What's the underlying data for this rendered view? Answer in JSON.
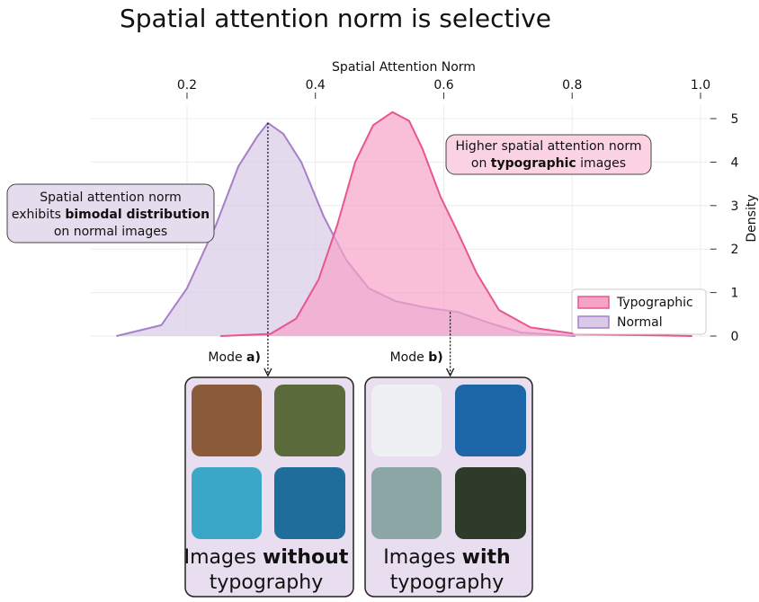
{
  "chart_data": {
    "type": "density",
    "title": "Spatial attention norm is selective",
    "x_label": "Spatial Attention Norm",
    "y_label": "Density",
    "xlim": [
      0.05,
      1.015
    ],
    "ylim": [
      0,
      5.3
    ],
    "xticks": [
      0.2,
      0.4,
      0.6,
      0.8,
      {
        "value": 1.0,
        "label": "1.0"
      }
    ],
    "yticks": [
      0,
      1,
      2,
      3,
      4,
      5
    ],
    "grid": true,
    "legend_position": "lower right",
    "series": [
      {
        "name": "Typographic",
        "color": "#e8558f",
        "fill": "#f7a3c7",
        "x": [
          0.252,
          0.33,
          0.37,
          0.405,
          0.434,
          0.462,
          0.49,
          0.52,
          0.546,
          0.567,
          0.595,
          0.623,
          0.651,
          0.686,
          0.735,
          0.805,
          0.987
        ],
        "values": [
          0,
          0.05,
          0.4,
          1.3,
          2.55,
          4.0,
          4.85,
          5.15,
          4.95,
          4.3,
          3.2,
          2.35,
          1.45,
          0.6,
          0.2,
          0.05,
          0
        ]
      },
      {
        "name": "Normal",
        "color": "#a77ec8",
        "fill": "#d9cbe7",
        "x": [
          0.09,
          0.16,
          0.2,
          0.245,
          0.28,
          0.31,
          0.326,
          0.35,
          0.378,
          0.413,
          0.448,
          0.483,
          0.525,
          0.574,
          0.623,
          0.665,
          0.72,
          0.805
        ],
        "values": [
          0,
          0.25,
          1.1,
          2.55,
          3.9,
          4.6,
          4.9,
          4.65,
          4.0,
          2.75,
          1.75,
          1.1,
          0.8,
          0.65,
          0.55,
          0.33,
          0.08,
          0
        ]
      }
    ],
    "annotations": [
      {
        "lines": [
          [
            "Spatial attention norm"
          ],
          [
            "exhibits ",
            "bimodal distribution"
          ],
          [
            "on normal images"
          ]
        ]
      },
      {
        "lines": [
          [
            "Higher spatial attention norm"
          ],
          [
            "on ",
            "typographic",
            " images"
          ]
        ]
      }
    ],
    "modes": [
      {
        "x": 0.326,
        "y": 4.9,
        "label": [
          "Mode ",
          "a)"
        ]
      },
      {
        "x": 0.61,
        "y": 0.55,
        "label": [
          "Mode ",
          "b)"
        ]
      }
    ]
  },
  "panels": [
    {
      "title": [
        [
          "Images ",
          "without"
        ],
        [
          "typography"
        ]
      ]
    },
    {
      "title": [
        [
          "Images ",
          "with"
        ],
        [
          "typography"
        ]
      ]
    }
  ]
}
